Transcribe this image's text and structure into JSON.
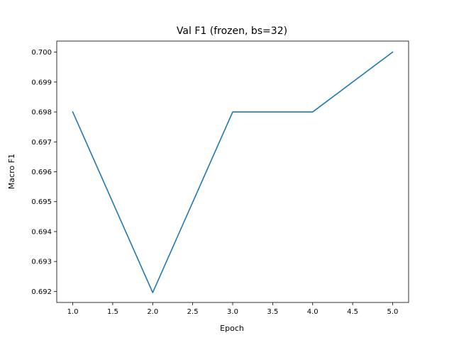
{
  "chart_data": {
    "type": "line",
    "title": "Val F1 (frozen, bs=32)",
    "xlabel": "Epoch",
    "ylabel": "Macro F1",
    "grid": false,
    "xlim": [
      0.8,
      5.2
    ],
    "ylim": [
      0.69163,
      0.70037
    ],
    "xticks": [
      "1.0",
      "1.5",
      "2.0",
      "2.5",
      "3.0",
      "3.5",
      "4.0",
      "4.5",
      "5.0"
    ],
    "yticks": [
      "0.692",
      "0.693",
      "0.694",
      "0.695",
      "0.696",
      "0.697",
      "0.698",
      "0.699",
      "0.700"
    ],
    "series": [
      {
        "color": "#1f77b4",
        "x": [
          1,
          2,
          3,
          4,
          5
        ],
        "y": [
          0.698,
          0.69196,
          0.698,
          0.698,
          0.7
        ]
      }
    ]
  }
}
